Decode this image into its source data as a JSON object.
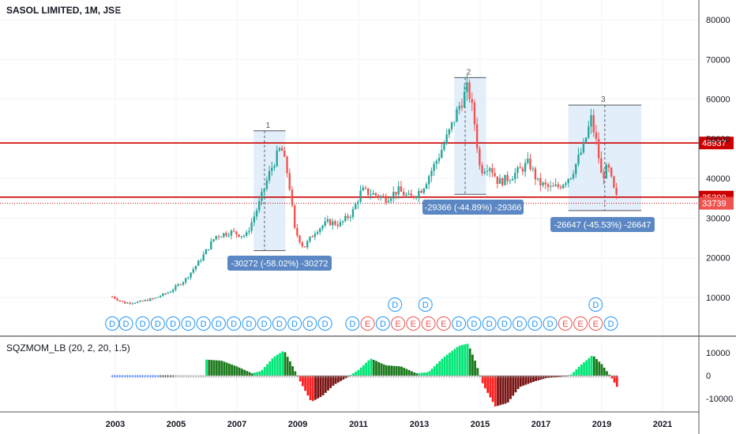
{
  "header": {
    "title": "SASOL LIMITED, 1M, JSE"
  },
  "indicator": {
    "title": "SQZMOM_LB (20, 2, 20, 1.5)"
  },
  "colors": {
    "bull": "#26a69a",
    "bear": "#ef5350",
    "hline": "#cc0000",
    "box": "#e3eefb",
    "annotation": "#5b88c4",
    "mom_lime": "#00e676",
    "mom_green": "#1b7a1b",
    "mom_red": "#ff1f1f",
    "mom_maroon": "#7a1414"
  },
  "chart_data": {
    "type": "candlestick",
    "x_ticks": [
      "2003",
      "2005",
      "2007",
      "2009",
      "2011",
      "2013",
      "2015",
      "2017",
      "2019",
      "2021"
    ],
    "y_ticks": [
      "10000",
      "20000",
      "30000",
      "40000",
      "50000",
      "60000",
      "70000",
      "80000"
    ],
    "ylim": [
      0,
      85000
    ],
    "price_points": [
      [
        2002.9,
        10200
      ],
      [
        2003.3,
        8600
      ],
      [
        2003.8,
        8900
      ],
      [
        2004.3,
        9800
      ],
      [
        2004.8,
        11500
      ],
      [
        2005.3,
        14500
      ],
      [
        2005.8,
        19500
      ],
      [
        2006.3,
        25500
      ],
      [
        2006.8,
        26500
      ],
      [
        2007.3,
        25500
      ],
      [
        2007.7,
        33000
      ],
      [
        2008.1,
        42000
      ],
      [
        2008.45,
        48000
      ],
      [
        2008.7,
        40000
      ],
      [
        2008.9,
        27000
      ],
      [
        2009.2,
        22500
      ],
      [
        2009.6,
        27000
      ],
      [
        2010.0,
        29000
      ],
      [
        2010.4,
        28500
      ],
      [
        2010.8,
        31500
      ],
      [
        2011.1,
        37000
      ],
      [
        2011.5,
        36000
      ],
      [
        2011.9,
        35000
      ],
      [
        2012.3,
        37000
      ],
      [
        2012.7,
        35000
      ],
      [
        2013.1,
        37500
      ],
      [
        2013.6,
        45000
      ],
      [
        2014.0,
        52000
      ],
      [
        2014.3,
        58000
      ],
      [
        2014.6,
        63000
      ],
      [
        2014.8,
        55000
      ],
      [
        2015.0,
        42000
      ],
      [
        2015.3,
        43500
      ],
      [
        2015.6,
        39000
      ],
      [
        2015.9,
        40000
      ],
      [
        2016.3,
        42000
      ],
      [
        2016.6,
        44000
      ],
      [
        2016.9,
        39000
      ],
      [
        2017.3,
        37500
      ],
      [
        2017.6,
        38000
      ],
      [
        2018.0,
        41000
      ],
      [
        2018.4,
        48000
      ],
      [
        2018.65,
        55000
      ],
      [
        2018.85,
        48000
      ],
      [
        2019.0,
        40000
      ],
      [
        2019.2,
        43000
      ],
      [
        2019.4,
        37000
      ],
      [
        2019.55,
        33739
      ]
    ],
    "horizontal_levels": [
      {
        "label": "48937",
        "value": 48937,
        "style": "solid"
      },
      {
        "label": "35300",
        "value": 35300,
        "style": "solid"
      },
      {
        "label": "33739",
        "value": 33739,
        "style": "dotted"
      }
    ],
    "measurements": [
      {
        "label": "1",
        "text": "-30272 (-58.02%) -30272",
        "x0": 2007.55,
        "x1": 2008.6,
        "y_high": 52000,
        "y_low": 21800
      },
      {
        "label": "2",
        "text": "-29366 (-44.89%) -29366",
        "x0": 2014.15,
        "x1": 2015.2,
        "y_high": 65400,
        "y_low": 36000
      },
      {
        "label": "3",
        "text": "-26647 (-45.53%) -26647",
        "x0": 2017.9,
        "x1": 2020.3,
        "y_high": 58500,
        "y_low": 31900
      }
    ],
    "dividend_row1": [
      {
        "x": 2012.2,
        "t": "D"
      },
      {
        "x": 2013.2,
        "t": "D"
      },
      {
        "x": 2018.8,
        "t": "D"
      }
    ],
    "dividend_row2": [
      {
        "x": 2002.9,
        "t": "D"
      },
      {
        "x": 2003.35,
        "t": "D"
      },
      {
        "x": 2003.9,
        "t": "D"
      },
      {
        "x": 2004.4,
        "t": "D"
      },
      {
        "x": 2004.9,
        "t": "D"
      },
      {
        "x": 2005.4,
        "t": "D"
      },
      {
        "x": 2005.9,
        "t": "D"
      },
      {
        "x": 2006.4,
        "t": "D"
      },
      {
        "x": 2006.9,
        "t": "D"
      },
      {
        "x": 2007.4,
        "t": "D"
      },
      {
        "x": 2007.9,
        "t": "D"
      },
      {
        "x": 2008.4,
        "t": "D"
      },
      {
        "x": 2008.9,
        "t": "D"
      },
      {
        "x": 2009.4,
        "t": "D"
      },
      {
        "x": 2009.9,
        "t": "D"
      },
      {
        "x": 2010.8,
        "t": "D"
      },
      {
        "x": 2011.3,
        "t": "E"
      },
      {
        "x": 2011.8,
        "t": "D"
      },
      {
        "x": 2012.3,
        "t": "E"
      },
      {
        "x": 2012.8,
        "t": "E"
      },
      {
        "x": 2013.3,
        "t": "E"
      },
      {
        "x": 2013.8,
        "t": "E"
      },
      {
        "x": 2014.3,
        "t": "D"
      },
      {
        "x": 2014.8,
        "t": "D"
      },
      {
        "x": 2015.3,
        "t": "D"
      },
      {
        "x": 2015.8,
        "t": "D"
      },
      {
        "x": 2016.3,
        "t": "D"
      },
      {
        "x": 2016.8,
        "t": "D"
      },
      {
        "x": 2017.3,
        "t": "D"
      },
      {
        "x": 2017.8,
        "t": "E"
      },
      {
        "x": 2018.3,
        "t": "E"
      },
      {
        "x": 2018.8,
        "t": "E"
      },
      {
        "x": 2019.3,
        "t": "D"
      }
    ],
    "momentum_ticks": [
      "10000",
      "0",
      "-10000"
    ],
    "momentum_ylim": [
      -14000,
      14000
    ],
    "momentum_points": [
      [
        2006.0,
        7000
      ],
      [
        2006.5,
        6500
      ],
      [
        2007.0,
        4000
      ],
      [
        2007.5,
        1000
      ],
      [
        2007.8,
        2000
      ],
      [
        2008.2,
        8000
      ],
      [
        2008.55,
        11000
      ],
      [
        2008.8,
        5000
      ],
      [
        2009.1,
        -3000
      ],
      [
        2009.45,
        -11500
      ],
      [
        2009.8,
        -9000
      ],
      [
        2010.2,
        -4000
      ],
      [
        2010.6,
        -1000
      ],
      [
        2011.0,
        2500
      ],
      [
        2011.4,
        7500
      ],
      [
        2011.9,
        4500
      ],
      [
        2012.4,
        4000
      ],
      [
        2012.9,
        1000
      ],
      [
        2013.3,
        1500
      ],
      [
        2013.8,
        8000
      ],
      [
        2014.3,
        13000
      ],
      [
        2014.6,
        14000
      ],
      [
        2014.85,
        6000
      ],
      [
        2015.1,
        -4000
      ],
      [
        2015.5,
        -13500
      ],
      [
        2015.9,
        -12000
      ],
      [
        2016.3,
        -5000
      ],
      [
        2016.8,
        -2500
      ],
      [
        2017.2,
        -1000
      ],
      [
        2017.7,
        -500
      ],
      [
        2018.0,
        500
      ],
      [
        2018.3,
        4500
      ],
      [
        2018.7,
        9000
      ],
      [
        2019.0,
        5000
      ],
      [
        2019.3,
        -500
      ],
      [
        2019.55,
        -6000
      ]
    ]
  }
}
